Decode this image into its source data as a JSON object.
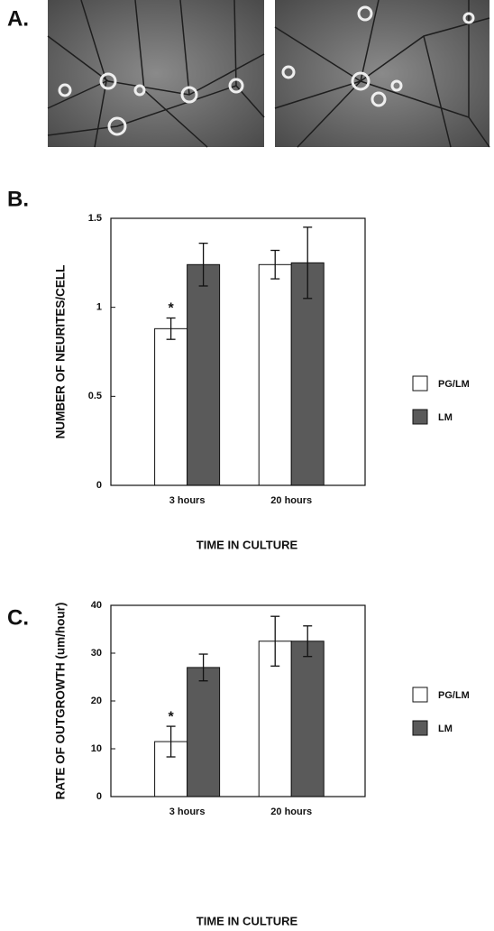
{
  "figure_labels": [
    "A.",
    "B.",
    "C."
  ],
  "chart_data": [
    {
      "type": "bar",
      "categories": [
        "3 hours",
        "20 hours"
      ],
      "series": [
        {
          "name": "PG/LM",
          "color": "#ffffff",
          "values": [
            0.88,
            1.24
          ],
          "errors": [
            0.06,
            0.08
          ]
        },
        {
          "name": "LM",
          "color": "#5a5a5a",
          "values": [
            1.24,
            1.25
          ],
          "errors": [
            0.12,
            0.2
          ]
        }
      ],
      "ylim": [
        0,
        1.5
      ],
      "yticks": [
        0,
        0.5,
        1,
        1.5
      ],
      "xlabel": "TIME IN CULTURE",
      "ylabel": "NUMBER OF NEURITES/CELL",
      "annotation": "*"
    },
    {
      "type": "bar",
      "categories": [
        "3 hours",
        "20 hours"
      ],
      "series": [
        {
          "name": "PG/LM",
          "color": "#ffffff",
          "values": [
            11.5,
            32.5
          ],
          "errors": [
            3.2,
            5.2
          ]
        },
        {
          "name": "LM",
          "color": "#5a5a5a",
          "values": [
            27,
            32.5
          ],
          "errors": [
            2.8,
            3.2
          ]
        }
      ],
      "ylim": [
        0,
        40
      ],
      "yticks": [
        0,
        10,
        20,
        30,
        40
      ],
      "xlabel": "TIME IN CULTURE",
      "ylabel": "RATE OF OUTGROWTH (um/hour)",
      "annotation": "*"
    }
  ]
}
